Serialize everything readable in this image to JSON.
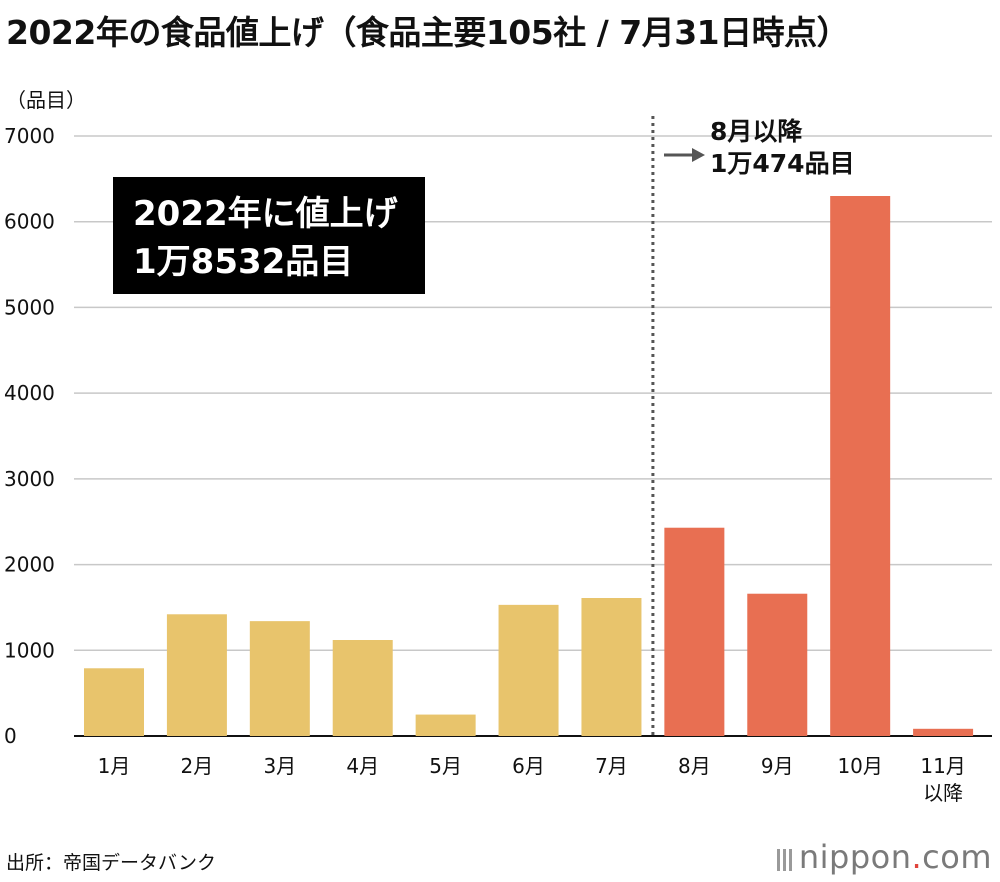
{
  "title": "2022年の食品値上げ（食品主要105社 / 7月31日時点）",
  "unit_label": "（品目）",
  "callout": {
    "line1": "2022年に値上げ",
    "line2": "1万8532品目"
  },
  "note": {
    "line1": "8月以降",
    "line2": "1万474品目"
  },
  "source": "出所：帝国データバンク",
  "logo": {
    "text": "nippon",
    "dot": ".",
    "suffix": "com"
  },
  "colors": {
    "before": "#E8C46C",
    "after": "#E86F52",
    "grid": "#c8c8c8",
    "axis": "#111111",
    "divider": "#555555"
  },
  "chart_data": {
    "type": "bar",
    "categories": [
      "1月",
      "2月",
      "3月",
      "4月",
      "5月",
      "6月",
      "7月",
      "8月",
      "9月",
      "10月",
      "11月\n以降"
    ],
    "values": [
      790,
      1420,
      1340,
      1120,
      250,
      1530,
      1610,
      2430,
      1660,
      6300,
      84
    ],
    "ylim": [
      0,
      7000
    ],
    "yticks": [
      0,
      1000,
      2000,
      3000,
      4000,
      5000,
      6000,
      7000
    ],
    "grid": true,
    "highlight_from_index": 7
  }
}
